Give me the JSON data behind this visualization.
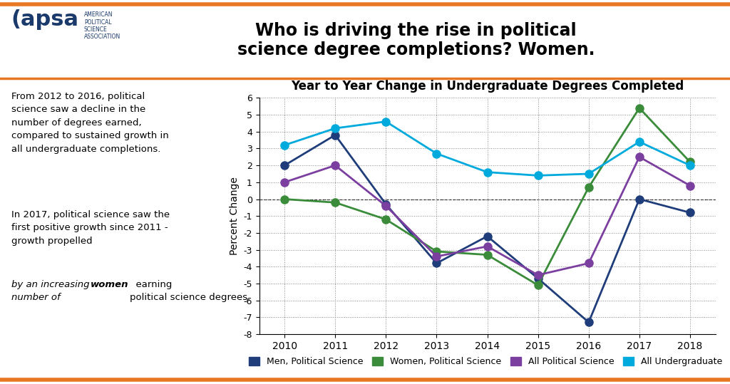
{
  "chart_title": "Year to Year Change in Undergraduate Degrees Completed",
  "header_line1": "Who is driving the rise in political",
  "header_line2": "science degree completions? Women.",
  "ylabel": "Percent Change",
  "years": [
    2010,
    2011,
    2012,
    2013,
    2014,
    2015,
    2016,
    2017,
    2018
  ],
  "men_ps": [
    2.0,
    3.8,
    -0.3,
    -3.8,
    -2.2,
    -4.7,
    -7.3,
    0.0,
    -0.8
  ],
  "women_ps": [
    0.0,
    -0.2,
    -1.2,
    -3.1,
    -3.3,
    -5.1,
    0.7,
    5.4,
    2.2
  ],
  "all_ps": [
    1.0,
    2.0,
    -0.4,
    -3.4,
    -2.8,
    -4.5,
    -3.8,
    2.5,
    0.8
  ],
  "all_ug": [
    3.2,
    4.2,
    4.6,
    2.7,
    1.6,
    1.4,
    1.5,
    3.4,
    2.0
  ],
  "color_men": "#1f3d7a",
  "color_women": "#3a8c3a",
  "color_allps": "#7b3fa0",
  "color_allug": "#00aadd",
  "orange": "#e87722",
  "ylim_low": -8,
  "ylim_high": 6,
  "yticks": [
    -8,
    -7,
    -6,
    -5,
    -4,
    -3,
    -2,
    -1,
    0,
    1,
    2,
    3,
    4,
    5,
    6
  ]
}
